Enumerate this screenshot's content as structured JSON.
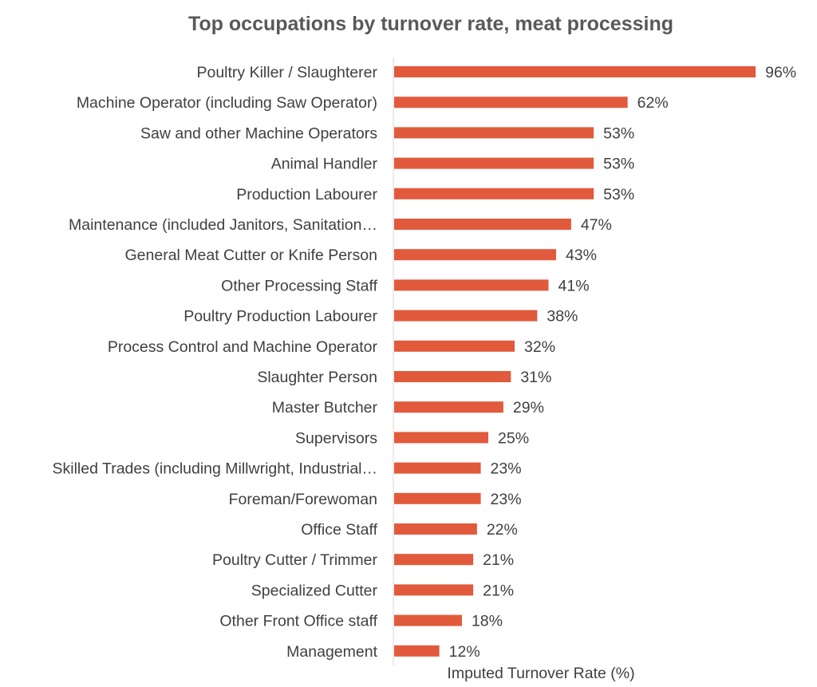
{
  "chart_data": {
    "type": "bar",
    "orientation": "horizontal",
    "title": "Top occupations by turnover rate, meat processing",
    "xlabel": "Imputed Turnover Rate (%)",
    "ylabel": "",
    "xlim": [
      0,
      100
    ],
    "grid": false,
    "legend": "none",
    "bar_color": "#E15A3C",
    "categories": [
      "Poultry Killer / Slaughterer",
      "Machine Operator (including Saw Operator)",
      "Saw and other Machine Operators",
      "Animal Handler",
      "Production Labourer",
      "Maintenance (included Janitors, Sanitation…",
      "General Meat Cutter or Knife Person",
      "Other Processing Staff",
      "Poultry Production Labourer",
      "Process Control and Machine Operator",
      "Slaughter Person",
      "Master Butcher",
      "Supervisors",
      "Skilled Trades (including Millwright, Industrial…",
      "Foreman/Forewoman",
      "Office Staff",
      "Poultry Cutter / Trimmer",
      "Specialized Cutter",
      "Other Front Office staff",
      "Management"
    ],
    "values": [
      96,
      62,
      53,
      53,
      53,
      47,
      43,
      41,
      38,
      32,
      31,
      29,
      25,
      23,
      23,
      22,
      21,
      21,
      18,
      12
    ],
    "value_labels": [
      "96%",
      "62%",
      "53%",
      "53%",
      "53%",
      "47%",
      "43%",
      "41%",
      "38%",
      "32%",
      "31%",
      "29%",
      "25%",
      "23%",
      "23%",
      "22%",
      "21%",
      "21%",
      "18%",
      "12%"
    ]
  }
}
